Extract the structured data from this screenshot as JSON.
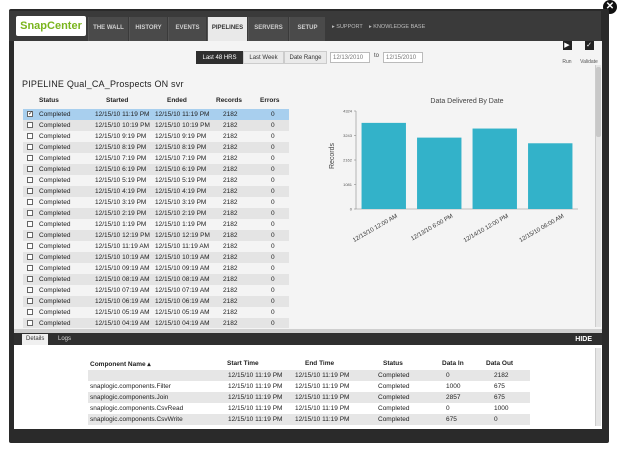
{
  "nav": {
    "logo": "SnapCenter",
    "tabs": [
      {
        "label": "THE WALL"
      },
      {
        "label": "HISTORY"
      },
      {
        "label": "EVENTS"
      },
      {
        "label": "PIPELINES"
      },
      {
        "label": "SERVERS"
      },
      {
        "label": "SETUP"
      }
    ],
    "active_tab": "PIPELINES",
    "links": [
      "▸ SUPPORT",
      "▸ KNOWLEDGE BASE"
    ]
  },
  "toolbar": {
    "run_label": "Run",
    "validate_label": "Validate"
  },
  "range": {
    "last48": "Last 48 HRS",
    "lastweek": "Last Week",
    "daterange": "Date Range",
    "from": "12/13/2010",
    "to_label": "to",
    "to": "12/15/2010"
  },
  "pipeline_title": "PIPELINE  Qual_CA_Prospects  ON  svr",
  "runs": {
    "columns": [
      "Status",
      "Started",
      "Ended",
      "Records",
      "Errors"
    ],
    "rows": [
      {
        "status": "Completed",
        "started": "12/15/10 11:19 PM",
        "ended": "12/15/10 11:19 PM",
        "records": "2182",
        "errors": "0",
        "checked": true
      },
      {
        "status": "Completed",
        "started": "12/15/10 10:19 PM",
        "ended": "12/15/10 10:19 PM",
        "records": "2182",
        "errors": "0"
      },
      {
        "status": "Completed",
        "started": "12/15/10 9:19 PM",
        "ended": "12/15/10 9:19 PM",
        "records": "2182",
        "errors": "0"
      },
      {
        "status": "Completed",
        "started": "12/15/10 8:19 PM",
        "ended": "12/15/10 8:19 PM",
        "records": "2182",
        "errors": "0"
      },
      {
        "status": "Completed",
        "started": "12/15/10 7:19 PM",
        "ended": "12/15/10 7:19 PM",
        "records": "2182",
        "errors": "0"
      },
      {
        "status": "Completed",
        "started": "12/15/10 6:19 PM",
        "ended": "12/15/10 6:19 PM",
        "records": "2182",
        "errors": "0"
      },
      {
        "status": "Completed",
        "started": "12/15/10 5:19 PM",
        "ended": "12/15/10 5:19 PM",
        "records": "2182",
        "errors": "0"
      },
      {
        "status": "Completed",
        "started": "12/15/10 4:19 PM",
        "ended": "12/15/10 4:19 PM",
        "records": "2182",
        "errors": "0"
      },
      {
        "status": "Completed",
        "started": "12/15/10 3:19 PM",
        "ended": "12/15/10 3:19 PM",
        "records": "2182",
        "errors": "0"
      },
      {
        "status": "Completed",
        "started": "12/15/10 2:19 PM",
        "ended": "12/15/10 2:19 PM",
        "records": "2182",
        "errors": "0"
      },
      {
        "status": "Completed",
        "started": "12/15/10 1:19 PM",
        "ended": "12/15/10 1:19 PM",
        "records": "2182",
        "errors": "0"
      },
      {
        "status": "Completed",
        "started": "12/15/10 12:19 PM",
        "ended": "12/15/10 12:19 PM",
        "records": "2182",
        "errors": "0"
      },
      {
        "status": "Completed",
        "started": "12/15/10 11:19 AM",
        "ended": "12/15/10 11:19 AM",
        "records": "2182",
        "errors": "0"
      },
      {
        "status": "Completed",
        "started": "12/15/10 10:19 AM",
        "ended": "12/15/10 10:19 AM",
        "records": "2182",
        "errors": "0"
      },
      {
        "status": "Completed",
        "started": "12/15/10 09:19 AM",
        "ended": "12/15/10 09:19 AM",
        "records": "2182",
        "errors": "0"
      },
      {
        "status": "Completed",
        "started": "12/15/10 08:19 AM",
        "ended": "12/15/10 08:19 AM",
        "records": "2182",
        "errors": "0"
      },
      {
        "status": "Completed",
        "started": "12/15/10 07:19 AM",
        "ended": "12/15/10 07:19 AM",
        "records": "2182",
        "errors": "0"
      },
      {
        "status": "Completed",
        "started": "12/15/10 06:19 AM",
        "ended": "12/15/10 06:19 AM",
        "records": "2182",
        "errors": "0"
      },
      {
        "status": "Completed",
        "started": "12/15/10 05:19 AM",
        "ended": "12/15/10 05:19 AM",
        "records": "2182",
        "errors": "0"
      },
      {
        "status": "Completed",
        "started": "12/15/10 04:19 AM",
        "ended": "12/15/10 04:19 AM",
        "records": "2182",
        "errors": "0"
      }
    ]
  },
  "chart_data": {
    "type": "bar",
    "title": "Data Delivered By Date",
    "ylabel": "Records",
    "xlabel": "",
    "categories": [
      "12/13/10 12:00 AM",
      "12/13/10 6:00 PM",
      "12/14/10 12:00 PM",
      "12/15/10 06:00 AM"
    ],
    "values": [
      3800,
      3150,
      3550,
      2900
    ],
    "ylim": [
      0,
      4324
    ],
    "yticks": [
      {
        "value": 0,
        "label": "0"
      },
      {
        "value": 1081,
        "label": "1081"
      },
      {
        "value": 2162,
        "label": "2162"
      },
      {
        "value": 3243,
        "label": "3243"
      },
      {
        "value": 4324,
        "label": "4324"
      }
    ],
    "bar_color": "#33b2c9"
  },
  "details": {
    "tabs": [
      "Details",
      "Logs"
    ],
    "hide_label": "HIDE",
    "columns": [
      "Component Name ▴",
      "Start Time",
      "End Time",
      "Status",
      "Data In",
      "Data Out"
    ],
    "rows": [
      {
        "name": "",
        "start": "12/15/10 11:19 PM",
        "end": "12/15/10 11:19 PM",
        "status": "Completed",
        "in": "0",
        "out": "2182"
      },
      {
        "name": "snaplogic.components.Filter",
        "start": "12/15/10 11:19 PM",
        "end": "12/15/10 11:19 PM",
        "status": "Completed",
        "in": "1000",
        "out": "675"
      },
      {
        "name": "snaplogic.components.Join",
        "start": "12/15/10 11:19 PM",
        "end": "12/15/10 11:19 PM",
        "status": "Completed",
        "in": "2857",
        "out": "675"
      },
      {
        "name": "snaplogic.components.CsvRead",
        "start": "12/15/10 11:19 PM",
        "end": "12/15/10 11:19 PM",
        "status": "Completed",
        "in": "0",
        "out": "1000"
      },
      {
        "name": "snaplogic.components.CsvWrite",
        "start": "12/15/10 11:19 PM",
        "end": "12/15/10 11:19 PM",
        "status": "Completed",
        "in": "675",
        "out": "0"
      }
    ]
  }
}
